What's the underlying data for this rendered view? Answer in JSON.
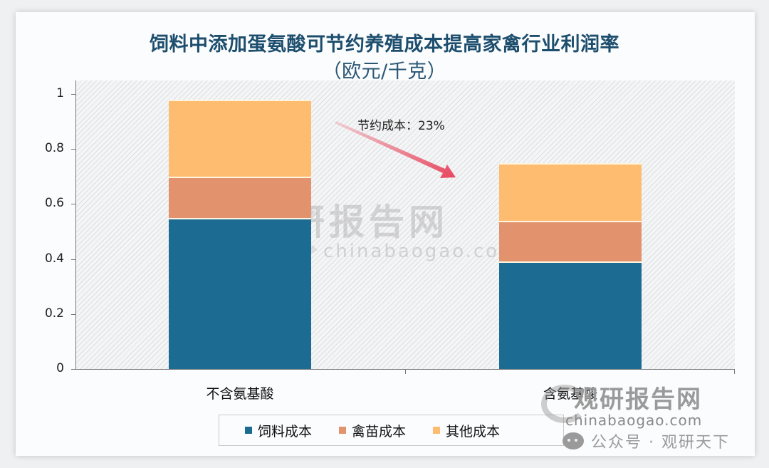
{
  "chart_data": {
    "type": "bar",
    "stacked": true,
    "title": "饲料中添加蛋氨酸可节约养殖成本提高家禽行业利润率",
    "subtitle": "（欧元/千克）",
    "xlabel": "",
    "ylabel": "",
    "categories": [
      "不含氨基酸",
      "含氨基酸"
    ],
    "series": [
      {
        "name": "饲料成本",
        "color": "#1b6b93",
        "values": [
          0.55,
          0.39
        ]
      },
      {
        "name": "禽苗成本",
        "color": "#e2936e",
        "values": [
          0.15,
          0.15
        ]
      },
      {
        "name": "其他成本",
        "color": "#fdbc6f",
        "values": [
          0.28,
          0.21
        ]
      }
    ],
    "totals": [
      0.98,
      0.75
    ],
    "ylim": [
      0,
      1
    ],
    "yticks": [
      "0",
      "0.2",
      "0.4",
      "0.6",
      "0.8",
      "1"
    ],
    "grid": false,
    "legend_position": "bottom",
    "annotations": [
      {
        "text": "节约成本：23%",
        "type": "arrow",
        "from": "不含氨基酸",
        "to": "含氨基酸"
      }
    ]
  },
  "watermarks": {
    "center_cn": "观研报告网",
    "center_en": "chinabaogao.com",
    "corner_cn": "观研报告网",
    "corner_en": "chinabaogao.com",
    "wechat": "公众号 · 观研天下"
  }
}
